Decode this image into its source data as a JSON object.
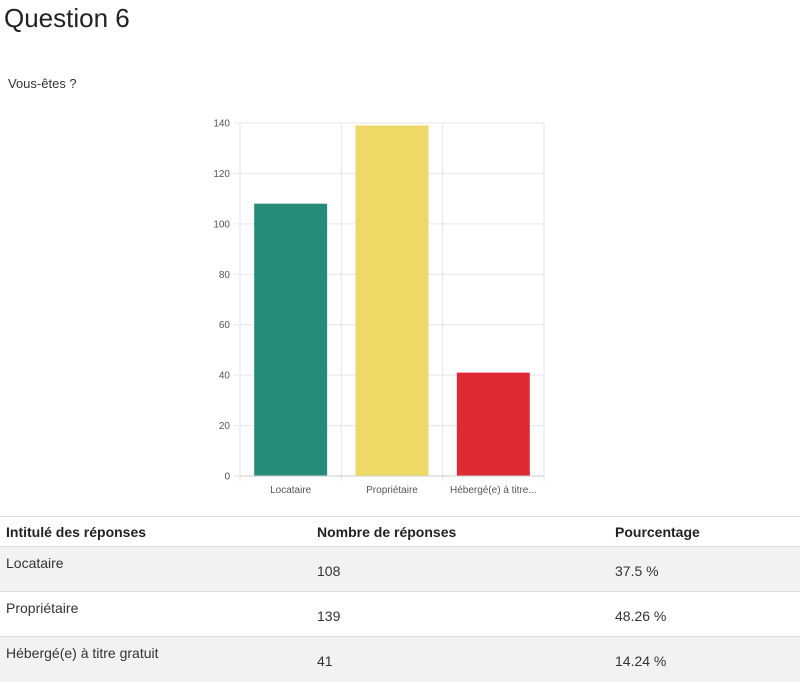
{
  "page_title": "Question 6",
  "question": "Vous-êtes ?",
  "chart_data": {
    "type": "bar",
    "title": "Vous-êtes ?",
    "categories": [
      "Locataire",
      "Propriétaire",
      "Hébergé(e) à titre..."
    ],
    "values": [
      108,
      139,
      41
    ],
    "colors": [
      "#268c78",
      "#efd966",
      "#dd2a35"
    ],
    "ylim": [
      0,
      140
    ],
    "yticks": [
      0,
      20,
      40,
      60,
      80,
      100,
      120,
      140
    ],
    "xlabel": "",
    "ylabel": "",
    "grid": true
  },
  "table": {
    "headers": [
      "Intitulé des réponses",
      "Nombre de réponses",
      "Pourcentage"
    ],
    "rows": [
      {
        "label": "Locataire",
        "count": "108",
        "percent": "37.5 %"
      },
      {
        "label": "Propriétaire",
        "count": "139",
        "percent": "48.26 %"
      },
      {
        "label": "Hébergé(e) à titre gratuit",
        "count": "41",
        "percent": "14.24 %"
      }
    ]
  }
}
